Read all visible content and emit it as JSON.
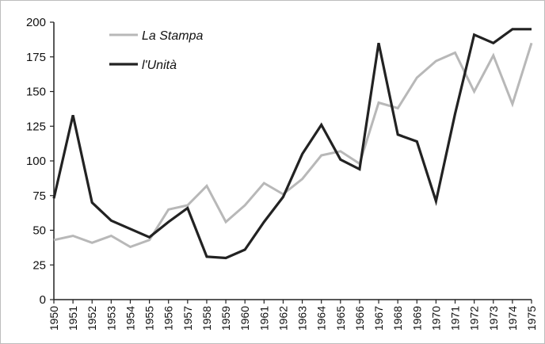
{
  "chart_data": {
    "type": "line",
    "categories": [
      "1950",
      "1951",
      "1952",
      "1953",
      "1954",
      "1955",
      "1956",
      "1957",
      "1958",
      "1959",
      "1960",
      "1961",
      "1962",
      "1963",
      "1964",
      "1965",
      "1966",
      "1967",
      "1968",
      "1969",
      "1970",
      "1971",
      "1972",
      "1973",
      "1974",
      "1975"
    ],
    "ylim": [
      0,
      200
    ],
    "yticks": [
      0,
      25,
      50,
      75,
      100,
      125,
      150,
      175,
      200
    ],
    "grid": false,
    "legend_position": "top-left",
    "series": [
      {
        "name": "La Stampa",
        "color": "#b8b8b8",
        "values": [
          43,
          46,
          41,
          46,
          38,
          43,
          65,
          68,
          82,
          56,
          68,
          84,
          76,
          87,
          104,
          107,
          98,
          142,
          138,
          160,
          172,
          178,
          150,
          176,
          141,
          185
        ]
      },
      {
        "name": "l'Unità",
        "color": "#222222",
        "values": [
          73,
          133,
          70,
          57,
          51,
          45,
          56,
          66,
          31,
          30,
          36,
          56,
          74,
          105,
          126,
          101,
          94,
          185,
          119,
          114,
          71,
          134,
          191,
          185,
          195,
          195
        ]
      }
    ]
  }
}
